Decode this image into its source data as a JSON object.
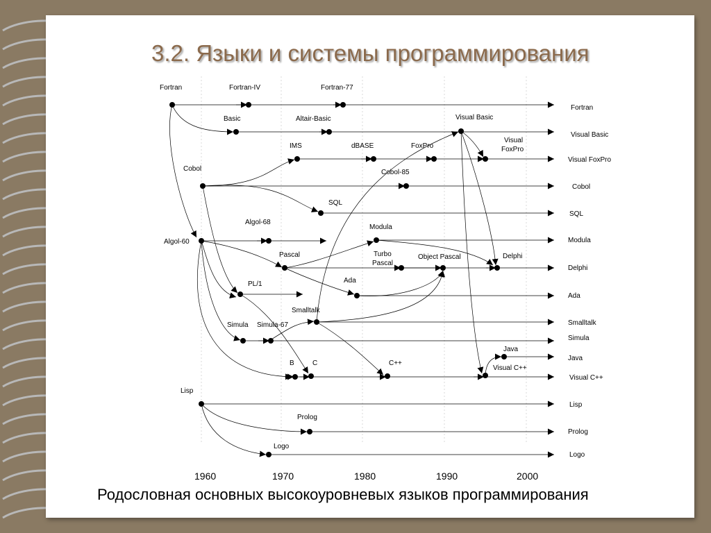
{
  "title": "3.2. Языки и системы программирования",
  "caption": "Родословная основных высокоуровневых языков программирования",
  "years": [
    "1960",
    "1970",
    "1980",
    "1990",
    "2000"
  ],
  "rows": [
    {
      "id": "fortran",
      "label": "Fortran"
    },
    {
      "id": "vbasic",
      "label": "Visual Basic"
    },
    {
      "id": "vfoxpro",
      "label": "Visual FoxPro"
    },
    {
      "id": "cobol",
      "label": "Cobol"
    },
    {
      "id": "sql",
      "label": "SQL"
    },
    {
      "id": "modula",
      "label": "Modula"
    },
    {
      "id": "delphi",
      "label": "Delphi"
    },
    {
      "id": "ada",
      "label": "Ada"
    },
    {
      "id": "smalltalk",
      "label": "Smalltalk"
    },
    {
      "id": "simula",
      "label": "Simula"
    },
    {
      "id": "java",
      "label": "Java"
    },
    {
      "id": "vcpp",
      "label": "Visual C++"
    },
    {
      "id": "lisp",
      "label": "Lisp"
    },
    {
      "id": "prolog",
      "label": "Prolog"
    },
    {
      "id": "logo",
      "label": "Logo"
    }
  ],
  "nodes": [
    {
      "id": "fortran",
      "label": "Fortran"
    },
    {
      "id": "fortran4",
      "label": "Fortran-IV"
    },
    {
      "id": "fortran77",
      "label": "Fortran-77"
    },
    {
      "id": "basic",
      "label": "Basic"
    },
    {
      "id": "altair",
      "label": "Altair-Basic"
    },
    {
      "id": "vbasic",
      "label": "Visual Basic"
    },
    {
      "id": "ims",
      "label": "IMS"
    },
    {
      "id": "dbase",
      "label": "dBASE"
    },
    {
      "id": "foxpro",
      "label": "FoxPro"
    },
    {
      "id": "vfoxpro",
      "label": "Visual\nFoxPro"
    },
    {
      "id": "cobol",
      "label": "Cobol"
    },
    {
      "id": "cobol85",
      "label": "Cobol-85"
    },
    {
      "id": "sql",
      "label": "SQL"
    },
    {
      "id": "algol68",
      "label": "Algol-68"
    },
    {
      "id": "algol60",
      "label": "Algol-60"
    },
    {
      "id": "modula",
      "label": "Modula"
    },
    {
      "id": "pascal",
      "label": "Pascal"
    },
    {
      "id": "turbopascal",
      "label": "Turbo\nPascal"
    },
    {
      "id": "objpascal",
      "label": "Object Pascal"
    },
    {
      "id": "delphi",
      "label": "Delphi"
    },
    {
      "id": "pl1",
      "label": "PL/1"
    },
    {
      "id": "ada",
      "label": "Ada"
    },
    {
      "id": "smalltalk",
      "label": "Smalltalk"
    },
    {
      "id": "simula",
      "label": "Simula"
    },
    {
      "id": "simula67",
      "label": "Simula-67"
    },
    {
      "id": "java",
      "label": "Java"
    },
    {
      "id": "vcpp",
      "label": "Visual C++"
    },
    {
      "id": "b",
      "label": "B"
    },
    {
      "id": "c",
      "label": "C"
    },
    {
      "id": "cpp",
      "label": "C++"
    },
    {
      "id": "lisp",
      "label": "Lisp"
    },
    {
      "id": "prolog",
      "label": "Prolog"
    },
    {
      "id": "logo",
      "label": "Logo"
    }
  ],
  "colors": {
    "background": "#8a7a63",
    "page": "#ffffff",
    "title": "#8b6a4c",
    "line": "#000000"
  }
}
